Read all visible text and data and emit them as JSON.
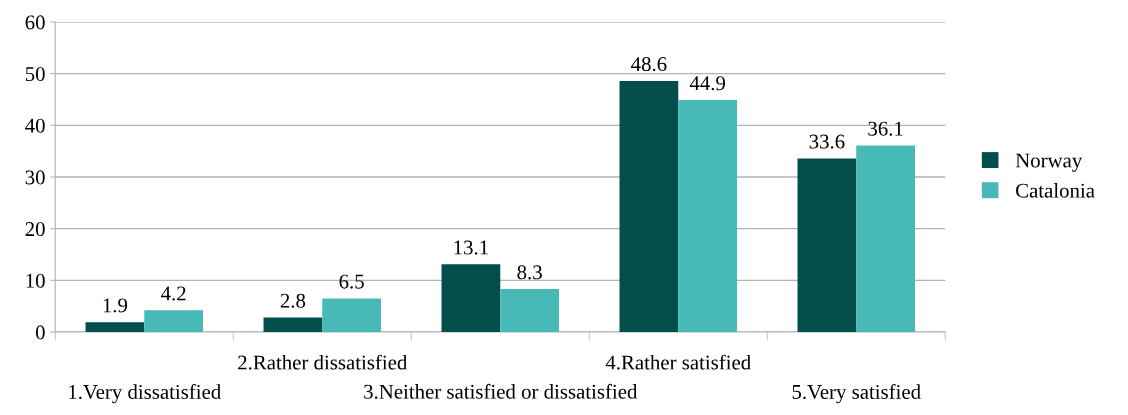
{
  "chart_data": {
    "type": "bar",
    "categories": [
      "1.Very dissatisfied",
      "2.Rather dissatisfied",
      "3.Neither satisfied or dissatisfied",
      "4.Rather satisfied",
      "5.Very satisfied"
    ],
    "series": [
      {
        "name": "Norway",
        "color": "#034d4b",
        "values": [
          1.9,
          2.8,
          13.1,
          48.6,
          33.6
        ]
      },
      {
        "name": "Catalonia",
        "color": "#47b9b7",
        "values": [
          4.2,
          6.5,
          8.3,
          44.9,
          36.1
        ]
      }
    ],
    "ylim": [
      0,
      60
    ],
    "yticks": [
      0,
      10,
      20,
      30,
      40,
      50,
      60
    ],
    "grid": "y",
    "legend": "right",
    "data_labels": true
  }
}
